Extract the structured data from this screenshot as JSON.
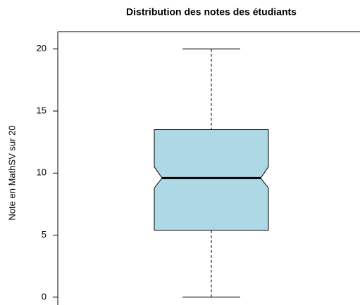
{
  "chart_data": {
    "type": "boxplot",
    "title": "Distribution des notes des étudiants",
    "ylabel": "Note en MathSV sur 20",
    "whisker_low": 0,
    "q1": 5.4,
    "notch_low": 8.8,
    "median": 9.6,
    "notch_high": 10.5,
    "q3": 13.5,
    "whisker_high": 20,
    "color": "#add8e6",
    "ylim": [
      -0.8,
      21.4
    ],
    "yticks": [
      0,
      5,
      10,
      15,
      20
    ]
  }
}
